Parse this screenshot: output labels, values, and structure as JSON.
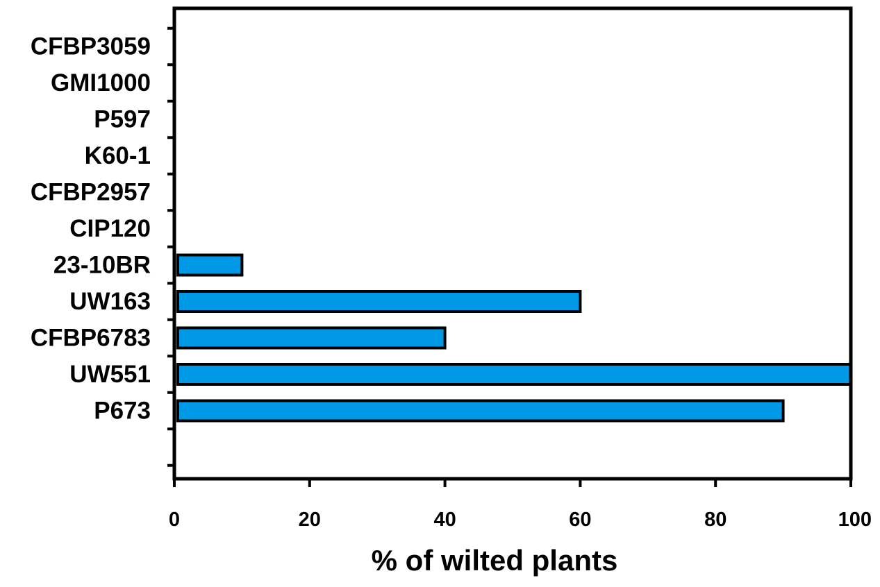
{
  "chart_data": {
    "type": "bar",
    "orientation": "horizontal",
    "title": "",
    "xlabel": "% of wilted plants",
    "ylabel": "",
    "categories": [
      "CFBP3059",
      "GMI1000",
      "P597",
      "K60-1",
      "CFBP2957",
      "CIP120",
      "23-10BR",
      "UW163",
      "CFBP6783",
      "UW551",
      "P673"
    ],
    "values": [
      0,
      0,
      0,
      0,
      0,
      0,
      10,
      60,
      40,
      100,
      90
    ],
    "xlim": [
      0,
      100
    ],
    "xticks": [
      "0",
      "20",
      "40",
      "60",
      "80",
      "100"
    ],
    "grid": false,
    "legend": "none",
    "bar_color": "#0099E6",
    "edge_color": "#000000"
  }
}
